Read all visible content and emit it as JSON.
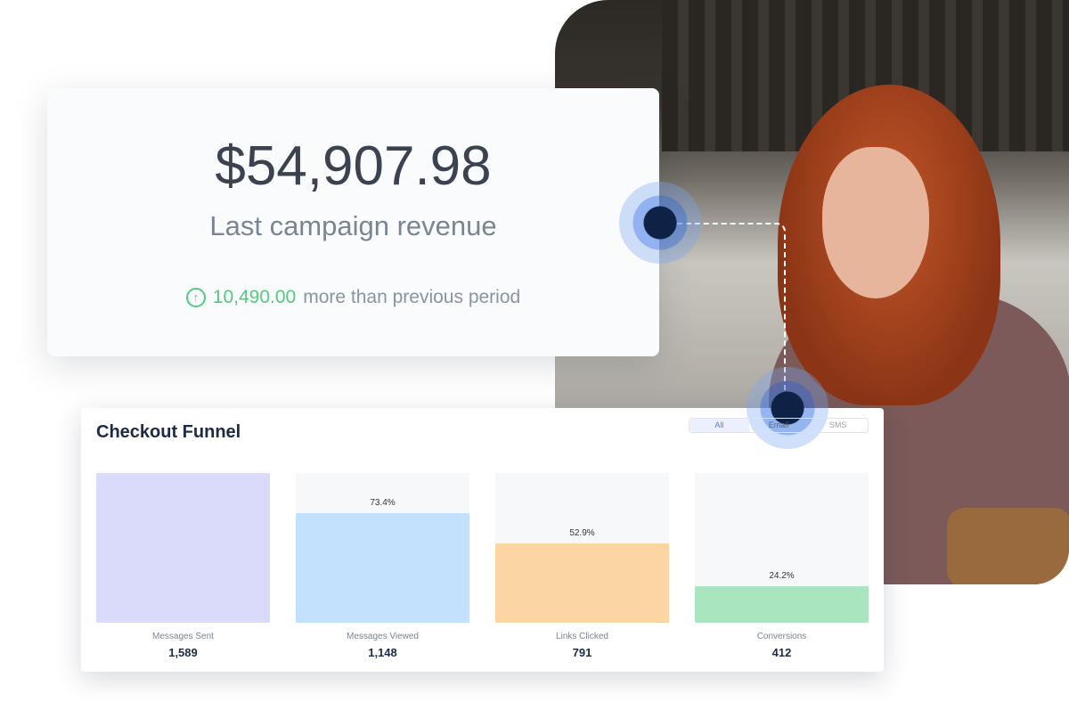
{
  "revenue": {
    "amount": "$54,907.98",
    "label": "Last campaign revenue",
    "delta_value": "10,490.00",
    "delta_text": "more than previous period",
    "delta_icon": "arrow-up-circle-icon",
    "delta_color": "#55c97f"
  },
  "funnel": {
    "title": "Checkout Funnel",
    "tabs": [
      "All",
      "Email",
      "SMS"
    ],
    "active_tab": "All",
    "stages": [
      {
        "label": "Messages Sent",
        "value": "1,589",
        "percent": 100,
        "pct_label": "",
        "color": "#dadbfb"
      },
      {
        "label": "Messages Viewed",
        "value": "1,148",
        "percent": 73.4,
        "pct_label": "73.4%",
        "color": "#c3e0fc"
      },
      {
        "label": "Links Clicked",
        "value": "791",
        "percent": 52.9,
        "pct_label": "52.9%",
        "color": "#fbd6a2"
      },
      {
        "label": "Conversions",
        "value": "412",
        "percent": 24.2,
        "pct_label": "24.2%",
        "color": "#a9e5be"
      }
    ]
  }
}
